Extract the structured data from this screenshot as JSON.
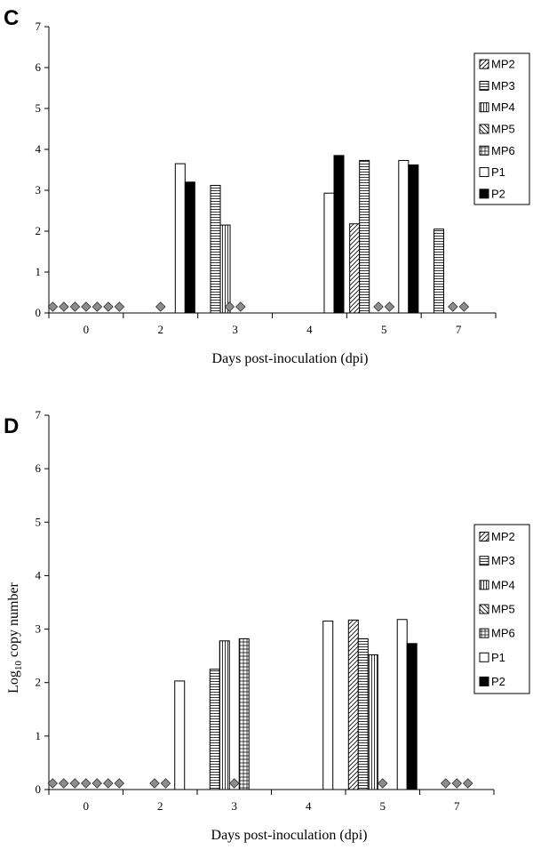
{
  "chart_data": [
    {
      "panel": "C",
      "type": "bar",
      "xlabel": "Days post-inoculation (dpi)",
      "ylabel": "",
      "ylim": [
        0,
        7
      ],
      "yticks": [
        0,
        1,
        2,
        3,
        4,
        5,
        6,
        7
      ],
      "categories": [
        "0",
        "2",
        "3",
        "4",
        "5",
        "7"
      ],
      "legend": [
        "MP2",
        "MP3",
        "MP4",
        "MP5",
        "MP6",
        "P1",
        "P2"
      ],
      "legend_position": "top-right",
      "groups": [
        {
          "category": "0",
          "bars": [],
          "undetected": [
            "MP2",
            "MP3",
            "MP4",
            "MP5",
            "MP6",
            "P1",
            "P2"
          ]
        },
        {
          "category": "2",
          "bars": [
            {
              "series": "P1",
              "value": 3.65
            },
            {
              "series": "P2",
              "value": 3.2
            }
          ],
          "undetected": [
            "MP2"
          ]
        },
        {
          "category": "3",
          "bars": [
            {
              "series": "MP3",
              "value": 3.12
            },
            {
              "series": "MP4",
              "value": 2.15
            }
          ],
          "undetected": [
            "MP5",
            "MP6"
          ]
        },
        {
          "category": "4",
          "bars": [
            {
              "series": "P1",
              "value": 2.93
            },
            {
              "series": "P2",
              "value": 3.85
            }
          ],
          "undetected": []
        },
        {
          "category": "5",
          "bars": [
            {
              "series": "MP2",
              "value": 2.18
            },
            {
              "series": "MP3",
              "value": 3.73
            },
            {
              "series": "P1",
              "value": 3.73
            },
            {
              "series": "P2",
              "value": 3.62
            }
          ],
          "undetected": [
            "MP4",
            "MP5"
          ]
        },
        {
          "category": "7",
          "bars": [
            {
              "series": "MP3",
              "value": 2.05
            }
          ],
          "undetected": [
            "MP2",
            "MP4"
          ]
        }
      ]
    },
    {
      "panel": "D",
      "type": "bar",
      "xlabel": "Days post-inoculation (dpi)",
      "ylabel": "Log10 copy number",
      "ylim": [
        0,
        7
      ],
      "yticks": [
        0,
        1,
        2,
        3,
        4,
        5,
        6,
        7
      ],
      "categories": [
        "0",
        "2",
        "3",
        "4",
        "5",
        "7"
      ],
      "legend": [
        "MP2",
        "MP3",
        "MP4",
        "MP5",
        "MP6",
        "P1",
        "P2"
      ],
      "legend_position": "right",
      "groups": [
        {
          "category": "0",
          "bars": [],
          "undetected": [
            "MP2",
            "MP3",
            "MP4",
            "MP5",
            "MP6",
            "P1",
            "P2"
          ]
        },
        {
          "category": "2",
          "bars": [
            {
              "series": "P1",
              "value": 2.03
            }
          ],
          "undetected": [
            "P2",
            "MP2"
          ]
        },
        {
          "category": "3",
          "bars": [
            {
              "series": "MP3",
              "value": 2.25
            },
            {
              "series": "MP4",
              "value": 2.78
            },
            {
              "series": "MP6",
              "value": 2.82
            }
          ],
          "undetected": [
            "MP5"
          ]
        },
        {
          "category": "4",
          "bars": [
            {
              "series": "P1",
              "value": 3.15
            }
          ],
          "undetected": []
        },
        {
          "category": "5",
          "bars": [
            {
              "series": "MP2",
              "value": 3.17
            },
            {
              "series": "MP3",
              "value": 2.82
            },
            {
              "series": "MP4",
              "value": 2.52
            },
            {
              "series": "P1",
              "value": 3.18
            },
            {
              "series": "P2",
              "value": 2.73
            }
          ],
          "undetected": [
            "MP6"
          ]
        },
        {
          "category": "7",
          "bars": [],
          "undetected": [
            "MP2",
            "MP3",
            "MP4"
          ]
        }
      ]
    }
  ]
}
